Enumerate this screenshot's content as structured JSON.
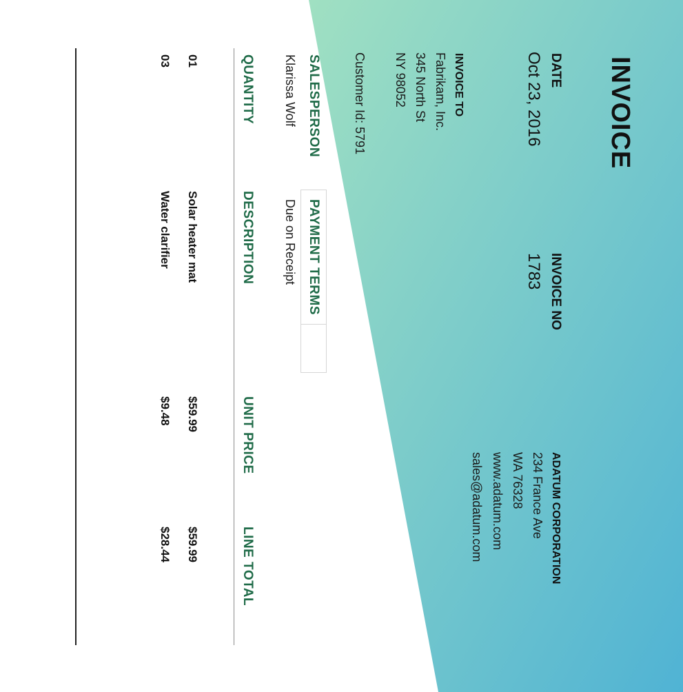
{
  "colors": {
    "gradient_start": "#a0e0c2",
    "gradient_end": "#50b3d4",
    "accent": "#1f6b48"
  },
  "invoice": {
    "title": "INVOICE",
    "date_label": "DATE",
    "date": "Oct 23, 2016",
    "invoice_no_label": "INVOICE NO",
    "invoice_no": "1783"
  },
  "company": {
    "name": "ADATUM CORPORATION",
    "street": "234 France Ave",
    "region": "WA 76328",
    "website": "www.adatum.com",
    "email": "sales@adatum.com"
  },
  "bill_to": {
    "label": "INVOICE TO",
    "name": "Fabrikam, Inc.",
    "street": "345 North St",
    "region": "NY 98052",
    "customer_id": "Customer Id: 5791"
  },
  "sales": {
    "salesperson_label": "SALESPERSON",
    "salesperson": "Klarissa Wolf",
    "payment_terms_label": "PAYMENT TERMS",
    "payment_terms": "Due on Receipt"
  },
  "table": {
    "headers": {
      "quantity": "QUANTITY",
      "description": "DESCRIPTION",
      "unit_price": "UNIT PRICE",
      "line_total": "LINE TOTAL"
    },
    "rows": [
      {
        "quantity": "01",
        "description": "Solar heater mat",
        "unit_price": "$59.99",
        "line_total": "$59.99"
      },
      {
        "quantity": "03",
        "description": "Water clarifier",
        "unit_price": "$9.48",
        "line_total": "$28.44"
      }
    ]
  }
}
